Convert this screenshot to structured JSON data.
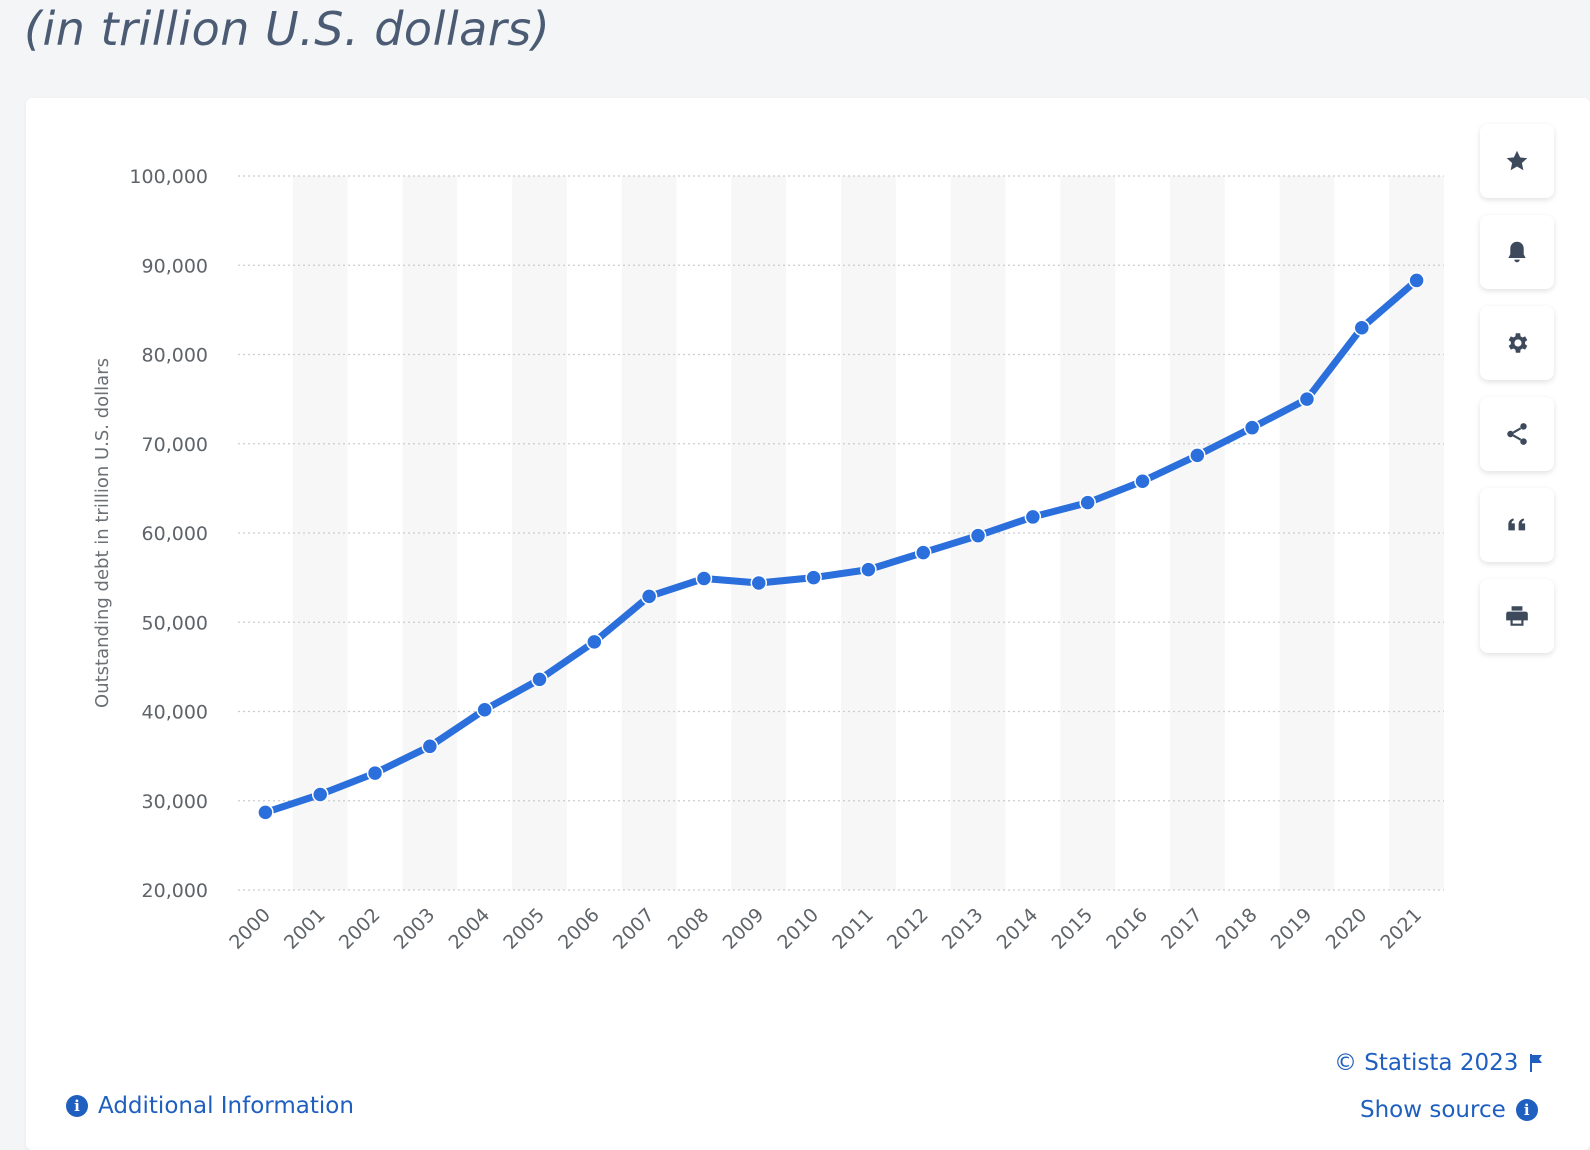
{
  "header": {
    "subtitle": "(in trillion U.S. dollars)"
  },
  "chart_data": {
    "type": "line",
    "ylabel": "Outstanding debt in trillion U.S. dollars",
    "xlabel": "",
    "ylim": [
      20000,
      100000
    ],
    "yticks": [
      "20,000",
      "30,000",
      "40,000",
      "50,000",
      "60,000",
      "70,000",
      "80,000",
      "90,000",
      "100,000"
    ],
    "ytick_values": [
      20000,
      30000,
      40000,
      50000,
      60000,
      70000,
      80000,
      90000,
      100000
    ],
    "categories": [
      "2000",
      "2001",
      "2002",
      "2003",
      "2004",
      "2005",
      "2006",
      "2007",
      "2008",
      "2009",
      "2010",
      "2011",
      "2012",
      "2013",
      "2014",
      "2015",
      "2016",
      "2017",
      "2018",
      "2019",
      "2020",
      "2021"
    ],
    "series": [
      {
        "values": [
          28700,
          30700,
          33100,
          36100,
          40200,
          43600,
          47800,
          52900,
          54900,
          54400,
          55000,
          55900,
          57800,
          59700,
          61800,
          63400,
          65800,
          68700,
          71800,
          75000,
          83000,
          88300
        ]
      }
    ],
    "grid": true,
    "line_color": "#2a6fdb",
    "band_color": "#f7f7f8"
  },
  "toolbar": {
    "buttons": [
      {
        "icon": "star-icon"
      },
      {
        "icon": "bell-icon"
      },
      {
        "icon": "gear-icon"
      },
      {
        "icon": "share-icon"
      },
      {
        "icon": "quote-icon"
      },
      {
        "icon": "print-icon"
      }
    ]
  },
  "footer": {
    "copyright": "© Statista 2023",
    "show_source": "Show source",
    "additional_info": "Additional Information"
  }
}
